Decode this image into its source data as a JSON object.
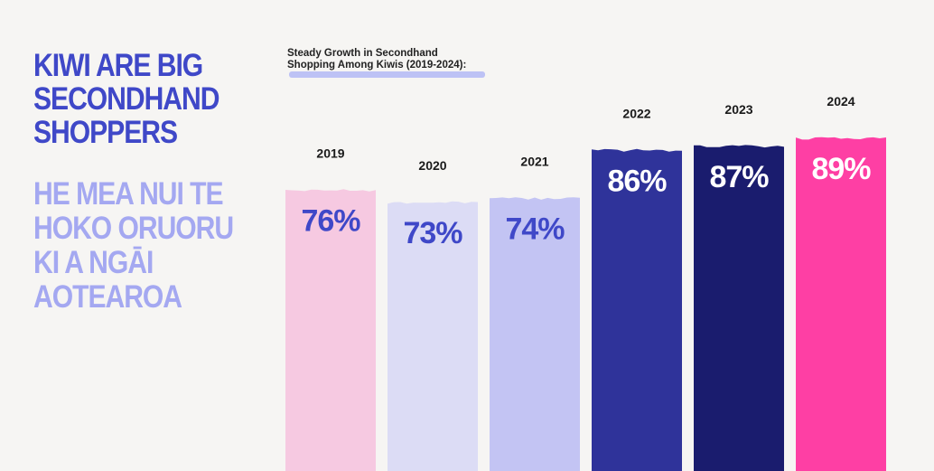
{
  "headline": "KIWI ARE BIG SECONDHAND SHOPPERS",
  "subheadline": "HE MEA NUI TE HOKO ORUORU KI A NGĀI AOTEAROA",
  "chart_data": {
    "type": "bar",
    "title": "Steady Growth in Secondhand Shopping Among Kiwis (2019-2024):",
    "title_lines": [
      "Steady Growth in Secondhand",
      "Shopping Among Kiwis (2019-2024):"
    ],
    "categories": [
      "2019",
      "2020",
      "2021",
      "2022",
      "2023",
      "2024"
    ],
    "values": [
      76,
      73,
      74,
      86,
      87,
      89
    ],
    "value_labels": [
      "76%",
      "73%",
      "74%",
      "86%",
      "87%",
      "89%"
    ],
    "unit": "%",
    "bar_colors": [
      "#f6c9e1",
      "#dcdcf5",
      "#c3c4f3",
      "#2f339a",
      "#1a1c6e",
      "#fe3fa4"
    ],
    "label_colors": [
      "#3f48c8",
      "#3f48c8",
      "#3f48c8",
      "#ffffff",
      "#ffffff",
      "#ffffff"
    ],
    "xlabel": "",
    "ylabel": "",
    "grid": false,
    "legend": "none"
  }
}
